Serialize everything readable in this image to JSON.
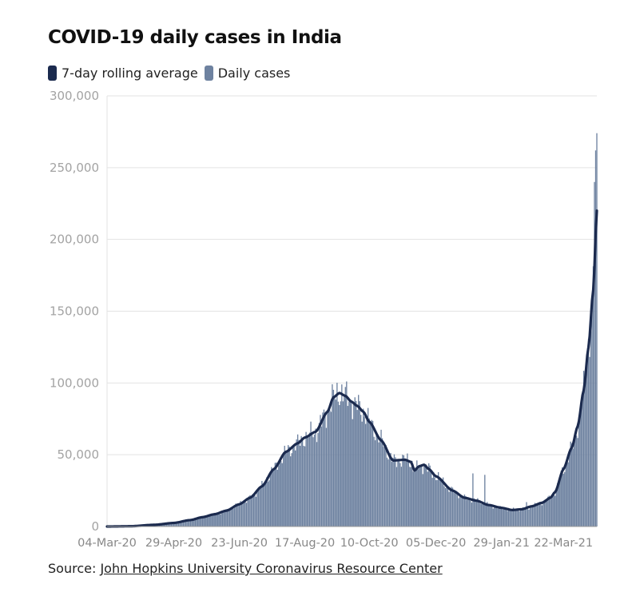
{
  "title": "COVID-19 daily cases in India",
  "legend": {
    "rolling_label": "7-day rolling average",
    "daily_label": "Daily cases"
  },
  "source": {
    "prefix": "Source:",
    "link_text": "John Hopkins University Coronavirus Resource Center"
  },
  "colors": {
    "rolling": "#1b2a4e",
    "daily": "#6e82a0",
    "grid": "#e3e3e3",
    "axis_text": "#a3a3a3",
    "date_text": "#888888",
    "baseline": "#9a9a9a"
  },
  "chart_data": {
    "type": "bar",
    "title": "COVID-19 daily cases in India",
    "ylim": [
      0,
      300000
    ],
    "y_ticks": [
      0,
      50000,
      100000,
      150000,
      200000,
      250000,
      300000
    ],
    "y_tick_labels": [
      "0",
      "50,000",
      "100,000",
      "150,000",
      "200,000",
      "250,000",
      "300,000"
    ],
    "x_start": "2020-03-04",
    "x_end": "2021-04-18",
    "total_days": 411,
    "x_ticks": [
      {
        "day": 0,
        "label": "04-Mar-20"
      },
      {
        "day": 56,
        "label": "29-Apr-20"
      },
      {
        "day": 111,
        "label": "23-Jun-20"
      },
      {
        "day": 166,
        "label": "17-Aug-20"
      },
      {
        "day": 220,
        "label": "10-Oct-20"
      },
      {
        "day": 276,
        "label": "05-Dec-20"
      },
      {
        "day": 331,
        "label": "29-Jan-21"
      },
      {
        "day": 383,
        "label": "22-Mar-21"
      }
    ],
    "series": [
      {
        "name": "7-day rolling average",
        "type": "line",
        "anchors": [
          [
            0,
            0
          ],
          [
            20,
            200
          ],
          [
            40,
            1200
          ],
          [
            56,
            2500
          ],
          [
            70,
            4500
          ],
          [
            80,
            6500
          ],
          [
            90,
            8500
          ],
          [
            100,
            11000
          ],
          [
            111,
            15500
          ],
          [
            120,
            20000
          ],
          [
            130,
            28000
          ],
          [
            140,
            40000
          ],
          [
            150,
            52000
          ],
          [
            160,
            58000
          ],
          [
            166,
            62000
          ],
          [
            175,
            66000
          ],
          [
            185,
            80000
          ],
          [
            190,
            90000
          ],
          [
            195,
            93000
          ],
          [
            200,
            91000
          ],
          [
            205,
            87000
          ],
          [
            210,
            84000
          ],
          [
            215,
            80000
          ],
          [
            220,
            73000
          ],
          [
            230,
            60000
          ],
          [
            240,
            46000
          ],
          [
            250,
            46500
          ],
          [
            255,
            45000
          ],
          [
            258,
            39000
          ],
          [
            262,
            42000
          ],
          [
            266,
            43000
          ],
          [
            270,
            40000
          ],
          [
            276,
            35000
          ],
          [
            290,
            25000
          ],
          [
            300,
            20000
          ],
          [
            310,
            18000
          ],
          [
            320,
            15000
          ],
          [
            331,
            13000
          ],
          [
            340,
            11500
          ],
          [
            348,
            12000
          ],
          [
            356,
            14000
          ],
          [
            365,
            16500
          ],
          [
            372,
            20000
          ],
          [
            376,
            24000
          ],
          [
            383,
            40000
          ],
          [
            390,
            55000
          ],
          [
            395,
            70000
          ],
          [
            400,
            95000
          ],
          [
            404,
            125000
          ],
          [
            408,
            165000
          ],
          [
            411,
            220000
          ]
        ]
      },
      {
        "name": "Daily cases",
        "type": "bar",
        "spikes": [
          [
            307,
            37000
          ],
          [
            317,
            36000
          ],
          [
            352,
            17000
          ],
          [
            409,
            240000
          ],
          [
            410,
            262000
          ],
          [
            411,
            274000
          ]
        ]
      }
    ]
  }
}
